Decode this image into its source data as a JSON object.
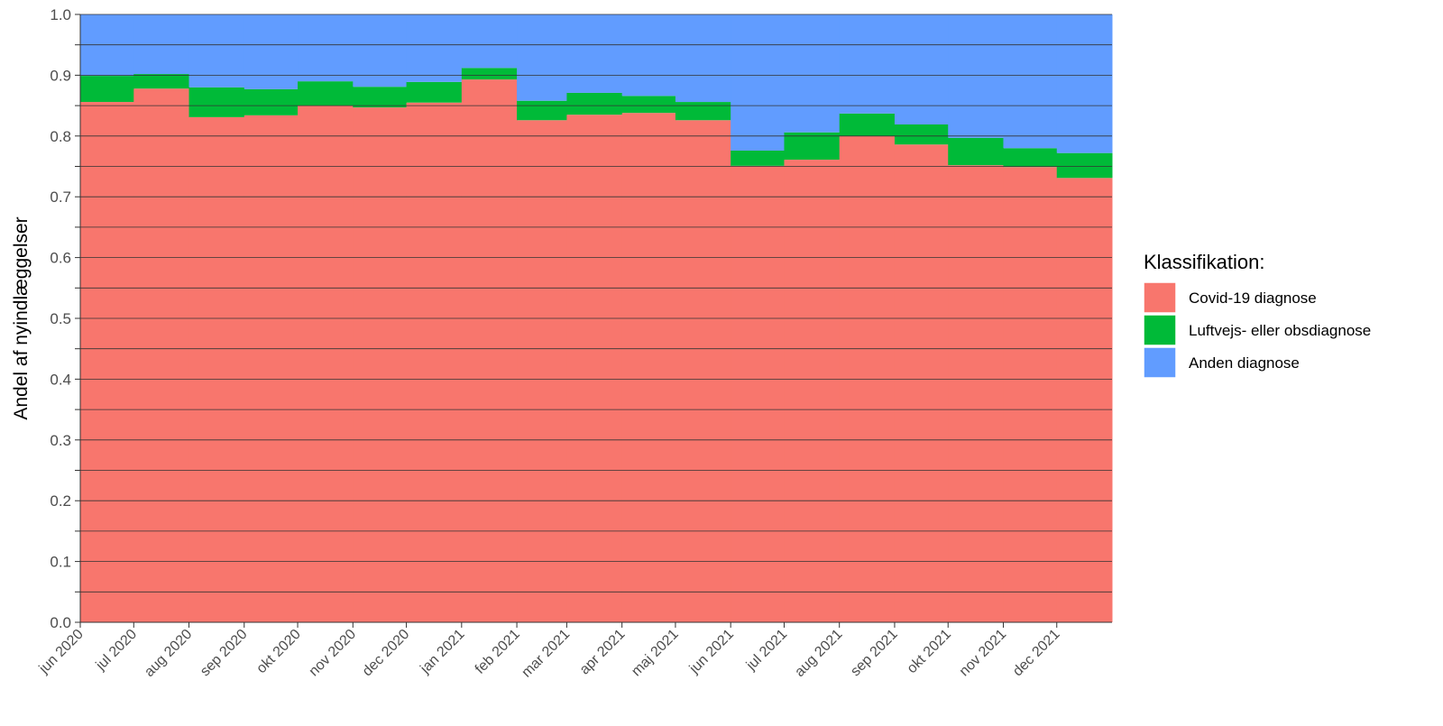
{
  "chart_data": {
    "type": "bar",
    "stacked": true,
    "title": "",
    "xlabel": "",
    "ylabel": "Andel af nyindlæggelser",
    "ylim": [
      0,
      1
    ],
    "y_ticks": [
      "0.0",
      "0.1",
      "0.2",
      "0.3",
      "0.4",
      "0.5",
      "0.6",
      "0.7",
      "0.8",
      "0.9",
      "1.0"
    ],
    "grid": true,
    "categories": [
      "jun 2020",
      "jul 2020",
      "aug 2020",
      "sep 2020",
      "okt 2020",
      "nov 2020",
      "dec 2020",
      "jan 2021",
      "feb 2021",
      "mar 2021",
      "apr 2021",
      "maj 2021",
      "jun 2021",
      "jul 2021",
      "aug 2021",
      "sep 2021",
      "okt 2021",
      "nov 2021",
      "dec 2021"
    ],
    "series": [
      {
        "name": "Covid-19 diagnose",
        "color": "#F8766D",
        "values": [
          0.856,
          0.878,
          0.831,
          0.834,
          0.85,
          0.847,
          0.855,
          0.893,
          0.826,
          0.835,
          0.838,
          0.826,
          0.751,
          0.761,
          0.8,
          0.786,
          0.752,
          0.749,
          0.731
        ]
      },
      {
        "name": "Luftvejs- eller obsdiagnose",
        "color": "#00BA38",
        "values": [
          0.043,
          0.024,
          0.049,
          0.043,
          0.04,
          0.034,
          0.034,
          0.019,
          0.032,
          0.036,
          0.028,
          0.03,
          0.025,
          0.045,
          0.037,
          0.033,
          0.045,
          0.031,
          0.041
        ]
      },
      {
        "name": "Anden diagnose",
        "color": "#619CFF",
        "values": [
          0.101,
          0.098,
          0.12,
          0.123,
          0.11,
          0.119,
          0.111,
          0.088,
          0.142,
          0.129,
          0.134,
          0.144,
          0.224,
          0.194,
          0.163,
          0.181,
          0.203,
          0.22,
          0.228
        ]
      }
    ],
    "legend": {
      "title": "Klassifikation:",
      "placement": "right"
    }
  }
}
